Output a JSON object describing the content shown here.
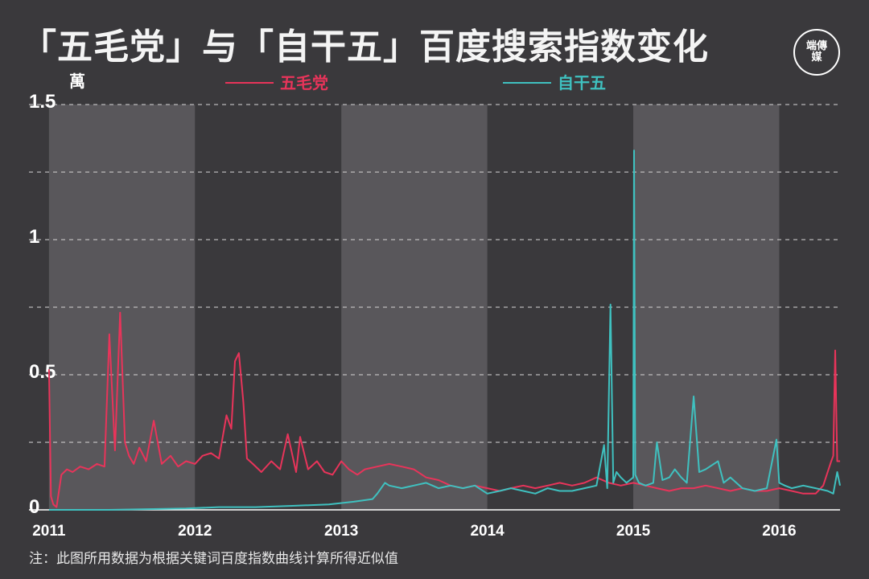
{
  "header": {
    "title": "「五毛党」与「自干五」百度搜索指数变化",
    "logo_text": "端傳媒"
  },
  "footer": {
    "note": "注：此图所用数据为根据关键词百度指数曲线计算所得近似值"
  },
  "colors": {
    "background": "#3a393c",
    "band": "#59575b",
    "wumao": "#e8345a",
    "ziganwu": "#3fc1c0",
    "grid": "#cfcfcf"
  },
  "chart_data": {
    "type": "line",
    "title": "「五毛党」与「自干五」百度搜索指数变化",
    "ylabel": "",
    "y_unit": "萬",
    "xlabel": "",
    "ylim": [
      0,
      1.5
    ],
    "xlim": [
      "2010-11-12",
      "2016-06-01"
    ],
    "y_ticks": [
      {
        "value": 0,
        "label": "0"
      },
      {
        "value": 0.5,
        "label": "0.5"
      },
      {
        "value": 1,
        "label": "1"
      },
      {
        "value": 1.5,
        "label": "1.5"
      }
    ],
    "x_ticks": [
      {
        "value": "2011-01-01",
        "label": "2011"
      },
      {
        "value": "2012-01-01",
        "label": "2012"
      },
      {
        "value": "2013-01-01",
        "label": "2013"
      },
      {
        "value": "2014-01-01",
        "label": "2014"
      },
      {
        "value": "2015-01-01",
        "label": "2015"
      },
      {
        "value": "2016-01-01",
        "label": "2016"
      }
    ],
    "shaded_years": [
      [
        "2011-01-01",
        "2012-01-01"
      ],
      [
        "2013-01-01",
        "2014-01-01"
      ],
      [
        "2015-01-01",
        "2016-01-01"
      ]
    ],
    "grid": "horizontal dashed",
    "legend_position": "top",
    "series": [
      {
        "name": "五毛党",
        "color": "#e8345a",
        "x": [
          "2011-01-01",
          "2011-01-06",
          "2011-01-12",
          "2011-01-20",
          "2011-02-01",
          "2011-02-15",
          "2011-03-01",
          "2011-03-20",
          "2011-04-10",
          "2011-05-01",
          "2011-05-20",
          "2011-06-01",
          "2011-06-15",
          "2011-06-28",
          "2011-07-10",
          "2011-07-20",
          "2011-08-01",
          "2011-08-15",
          "2011-09-01",
          "2011-09-20",
          "2011-10-10",
          "2011-11-01",
          "2011-11-20",
          "2011-12-10",
          "2012-01-01",
          "2012-01-20",
          "2012-02-10",
          "2012-03-01",
          "2012-03-20",
          "2012-04-01",
          "2012-04-10",
          "2012-04-20",
          "2012-05-01",
          "2012-05-10",
          "2012-05-25",
          "2012-06-15",
          "2012-07-10",
          "2012-08-01",
          "2012-08-20",
          "2012-09-10",
          "2012-09-20",
          "2012-10-10",
          "2012-11-01",
          "2012-11-20",
          "2012-12-10",
          "2013-01-01",
          "2013-01-20",
          "2013-02-10",
          "2013-03-01",
          "2013-04-01",
          "2013-05-01",
          "2013-06-01",
          "2013-07-01",
          "2013-08-01",
          "2013-09-01",
          "2013-10-01",
          "2013-11-01",
          "2013-12-01",
          "2014-01-01",
          "2014-02-01",
          "2014-03-01",
          "2014-04-01",
          "2014-05-01",
          "2014-06-01",
          "2014-07-01",
          "2014-08-01",
          "2014-09-01",
          "2014-10-01",
          "2014-11-01",
          "2014-12-01",
          "2015-01-01",
          "2015-02-01",
          "2015-03-01",
          "2015-04-01",
          "2015-05-01",
          "2015-06-01",
          "2015-07-01",
          "2015-08-01",
          "2015-09-01",
          "2015-10-01",
          "2015-11-01",
          "2015-12-01",
          "2016-01-01",
          "2016-02-01",
          "2016-03-01",
          "2016-04-01",
          "2016-04-20",
          "2016-05-01",
          "2016-05-10",
          "2016-05-15",
          "2016-05-20",
          "2016-05-25",
          "2016-06-01"
        ],
        "values": [
          0.52,
          0.05,
          0.02,
          0.01,
          0.13,
          0.15,
          0.14,
          0.16,
          0.15,
          0.17,
          0.16,
          0.65,
          0.22,
          0.73,
          0.25,
          0.2,
          0.17,
          0.23,
          0.18,
          0.33,
          0.17,
          0.2,
          0.16,
          0.18,
          0.17,
          0.2,
          0.21,
          0.19,
          0.35,
          0.3,
          0.55,
          0.58,
          0.4,
          0.19,
          0.17,
          0.14,
          0.18,
          0.15,
          0.28,
          0.14,
          0.27,
          0.15,
          0.18,
          0.14,
          0.13,
          0.18,
          0.15,
          0.13,
          0.15,
          0.16,
          0.17,
          0.16,
          0.15,
          0.12,
          0.11,
          0.09,
          0.08,
          0.09,
          0.08,
          0.07,
          0.08,
          0.09,
          0.08,
          0.09,
          0.1,
          0.09,
          0.1,
          0.12,
          0.1,
          0.09,
          0.1,
          0.09,
          0.08,
          0.07,
          0.08,
          0.08,
          0.09,
          0.08,
          0.07,
          0.08,
          0.07,
          0.07,
          0.08,
          0.07,
          0.06,
          0.06,
          0.09,
          0.14,
          0.18,
          0.2,
          0.59,
          0.18,
          0.18
        ]
      },
      {
        "name": "自干五",
        "color": "#3fc1c0",
        "x": [
          "2011-01-01",
          "2011-06-01",
          "2011-12-10",
          "2012-03-01",
          "2012-06-01",
          "2012-09-01",
          "2012-12-01",
          "2013-02-01",
          "2013-03-20",
          "2013-04-01",
          "2013-04-20",
          "2013-05-01",
          "2013-06-01",
          "2013-07-01",
          "2013-08-01",
          "2013-09-01",
          "2013-10-01",
          "2013-11-01",
          "2013-12-01",
          "2014-01-01",
          "2014-02-01",
          "2014-03-01",
          "2014-04-01",
          "2014-05-01",
          "2014-06-01",
          "2014-07-01",
          "2014-08-01",
          "2014-09-01",
          "2014-10-01",
          "2014-10-20",
          "2014-10-28",
          "2014-11-05",
          "2014-11-12",
          "2014-11-20",
          "2014-12-01",
          "2014-12-15",
          "2015-01-01",
          "2015-01-03",
          "2015-01-06",
          "2015-01-15",
          "2015-02-01",
          "2015-02-20",
          "2015-03-01",
          "2015-03-15",
          "2015-04-01",
          "2015-04-15",
          "2015-05-01",
          "2015-05-15",
          "2015-06-01",
          "2015-06-15",
          "2015-07-01",
          "2015-08-01",
          "2015-08-15",
          "2015-09-01",
          "2015-10-01",
          "2015-11-01",
          "2015-12-01",
          "2015-12-25",
          "2016-01-01",
          "2016-01-15",
          "2016-02-01",
          "2016-03-01",
          "2016-04-01",
          "2016-05-01",
          "2016-05-15",
          "2016-05-25",
          "2016-06-01"
        ],
        "values": [
          0.0,
          0.0,
          0.005,
          0.01,
          0.01,
          0.015,
          0.02,
          0.03,
          0.04,
          0.06,
          0.1,
          0.09,
          0.08,
          0.09,
          0.1,
          0.08,
          0.09,
          0.08,
          0.09,
          0.06,
          0.07,
          0.08,
          0.07,
          0.06,
          0.08,
          0.07,
          0.07,
          0.08,
          0.09,
          0.24,
          0.08,
          0.76,
          0.1,
          0.14,
          0.12,
          0.1,
          0.12,
          1.33,
          0.13,
          0.1,
          0.09,
          0.1,
          0.25,
          0.11,
          0.12,
          0.15,
          0.12,
          0.1,
          0.42,
          0.14,
          0.15,
          0.18,
          0.1,
          0.12,
          0.08,
          0.07,
          0.08,
          0.26,
          0.1,
          0.09,
          0.08,
          0.09,
          0.08,
          0.07,
          0.06,
          0.14,
          0.09
        ]
      }
    ]
  }
}
